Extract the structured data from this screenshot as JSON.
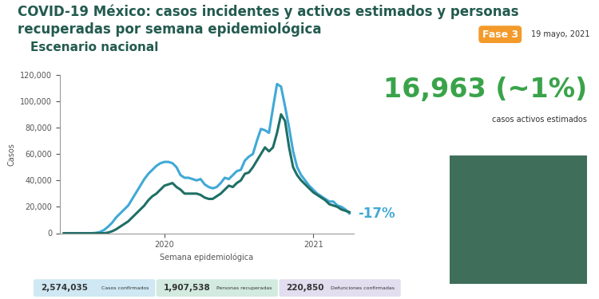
{
  "chart_data": {
    "type": "line",
    "title": "COVID-19 México: casos incidentes y activos estimados y personas recuperadas por semana epidemiológica",
    "subtitle": "Escenario nacional",
    "x_label": "Semana epidemiológica",
    "y_label": "Casos",
    "categories": [
      null,
      null,
      null,
      null,
      null,
      null,
      null,
      null,
      null,
      null,
      null,
      null,
      null,
      null,
      null,
      null,
      null,
      null,
      null,
      null,
      null,
      null,
      null,
      null,
      null,
      "2020",
      null,
      null,
      null,
      null,
      null,
      null,
      null,
      null,
      null,
      null,
      null,
      null,
      null,
      null,
      null,
      null,
      null,
      null,
      null,
      null,
      null,
      null,
      null,
      null,
      null,
      null,
      null,
      null,
      null,
      null,
      null,
      null,
      null,
      null,
      null,
      null,
      "2021",
      null,
      null,
      null,
      null,
      null,
      null,
      null,
      null,
      null
    ],
    "series": [
      {
        "color": "#3fa9d6",
        "values": [
          0,
          0,
          0,
          0,
          0,
          0,
          0,
          0,
          300,
          1000,
          2500,
          5000,
          8000,
          12000,
          15000,
          18000,
          21000,
          26000,
          31000,
          36000,
          41000,
          45000,
          48000,
          51000,
          53000,
          54000,
          54000,
          53000,
          50000,
          44000,
          42000,
          42000,
          41000,
          40000,
          41000,
          37000,
          35000,
          34000,
          35000,
          38000,
          42000,
          41000,
          44000,
          47000,
          48000,
          55000,
          58000,
          60000,
          70000,
          79000,
          78000,
          76000,
          95000,
          113000,
          111000,
          96000,
          80000,
          62000,
          50000,
          44000,
          40000,
          36000,
          33000,
          30000,
          28000,
          26000,
          24000,
          24000,
          21000,
          20000,
          18000,
          15000
        ]
      },
      {
        "color": "#1f6f66",
        "values": [
          0,
          0,
          0,
          0,
          0,
          0,
          0,
          0,
          0,
          0,
          0,
          500,
          1500,
          3000,
          5000,
          7000,
          9000,
          12000,
          15000,
          18000,
          21000,
          25000,
          28000,
          30000,
          33000,
          36000,
          37000,
          38000,
          35000,
          33000,
          30000,
          30000,
          30000,
          30000,
          29000,
          27000,
          26000,
          26000,
          28000,
          30000,
          33000,
          36000,
          35000,
          38000,
          40000,
          45000,
          46000,
          50000,
          55000,
          60000,
          65000,
          62000,
          65000,
          76000,
          90000,
          85000,
          65000,
          50000,
          44000,
          40000,
          37000,
          34000,
          31000,
          29000,
          27000,
          25000,
          22000,
          21000,
          20000,
          18000,
          17000,
          16000
        ]
      }
    ],
    "ylim": [
      0,
      120000
    ],
    "yticks": [
      0,
      {
        "value": 20000,
        "label": "20,000"
      },
      {
        "value": 40000,
        "label": "40,000"
      },
      {
        "value": 60000,
        "label": "60,000"
      },
      {
        "value": 80000,
        "label": "80,000"
      },
      {
        "value": 100000,
        "label": "100,000"
      },
      {
        "value": 120000,
        "label": "120,000"
      }
    ],
    "grid": false,
    "annotations": [
      "-17%"
    ]
  },
  "header": {
    "phase": "Fase 3",
    "date": "19 mayo, 2021"
  },
  "highlight": {
    "value": "16,963 (~1%)",
    "label": "casos activos estimados"
  },
  "footer_boxes": [
    {
      "value": "2,574,035",
      "label": "Casos confirmados",
      "color": "#cfe8f3"
    },
    {
      "value": "1,907,538",
      "label": "Personas recuperadas",
      "color": "#d3eadf"
    },
    {
      "value": "220,850",
      "label": "Defunciones confirmadas",
      "color": "#e2def0"
    }
  ]
}
